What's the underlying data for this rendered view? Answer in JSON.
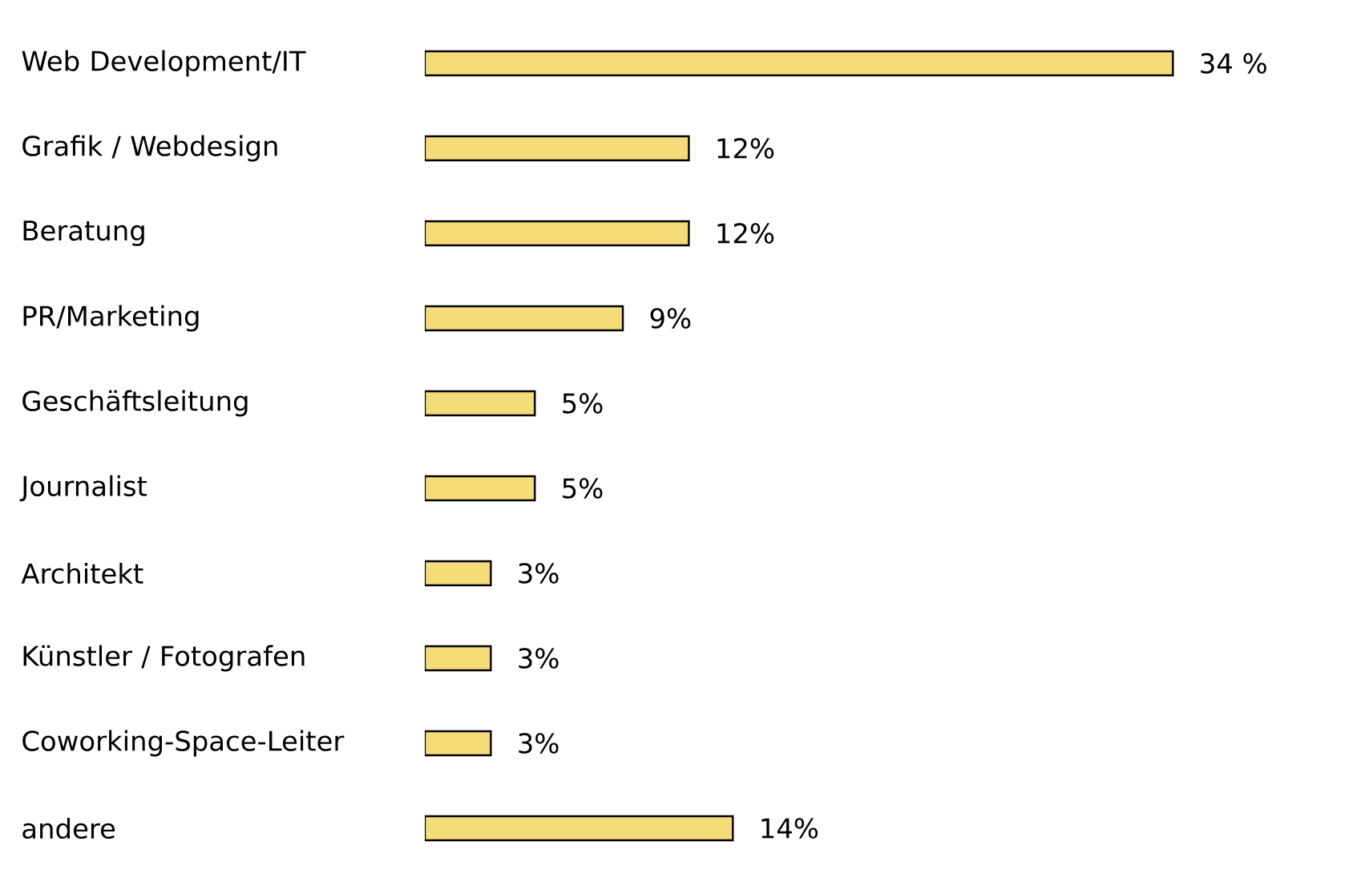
{
  "chart_data": {
    "type": "bar",
    "orientation": "horizontal",
    "categories": [
      "Web Development/IT",
      "Grafik / Webdesign",
      "Beratung",
      "PR/Marketing",
      "Geschäftsleitung",
      "Journalist",
      "Architekt",
      "Künstler / Fotografen",
      "Coworking-Space-Leiter",
      "andere"
    ],
    "values": [
      34,
      12,
      12,
      9,
      5,
      5,
      3,
      3,
      3,
      14
    ],
    "value_labels": [
      "34 %",
      "12%",
      "12%",
      "9%",
      "5%",
      "5%",
      "3%",
      "3%",
      "3%",
      "14%"
    ],
    "color": "#f5dc78"
  }
}
